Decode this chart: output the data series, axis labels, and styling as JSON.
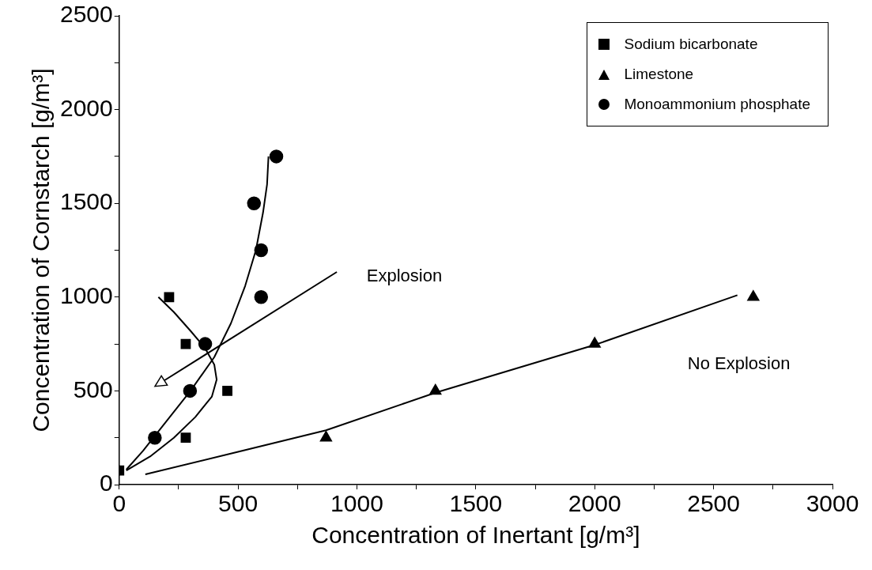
{
  "chart_data": {
    "type": "scatter",
    "xlabel": "Concentration of Inertant [g/m³]",
    "ylabel": "Concentration of Cornstarch [g/m³]",
    "xlim": [
      0,
      3000
    ],
    "ylim": [
      0,
      2500
    ],
    "xticks": [
      0,
      {
        "value": 250,
        "label": null
      },
      500,
      {
        "value": 750,
        "label": null
      },
      1000,
      {
        "value": 1250,
        "label": null
      },
      1500,
      {
        "value": 1750,
        "label": null
      },
      2000,
      {
        "value": 2250,
        "label": null
      },
      2500,
      {
        "value": 2750,
        "label": null
      },
      3000
    ],
    "yticks": [
      0,
      {
        "value": 250,
        "label": null
      },
      500,
      {
        "value": 750,
        "label": null
      },
      1000,
      {
        "value": 1250,
        "label": null
      },
      1500,
      {
        "value": 1750,
        "label": null
      },
      2000,
      {
        "value": 2250,
        "label": null
      },
      2500
    ],
    "grid": false,
    "legend": "top right",
    "series": [
      {
        "name": "Sodium bicarbonate",
        "type": "scatter",
        "marker": "square",
        "color": "#000000",
        "x": [
          0,
          210,
          280,
          455,
          280
        ],
        "values": [
          75,
          1000,
          750,
          500,
          250
        ]
      },
      {
        "name": "Limestone",
        "type": "scatter",
        "marker": "triangle",
        "color": "#000000",
        "x": [
          870,
          1330,
          2000,
          2667
        ],
        "values": [
          250,
          500,
          750,
          1000
        ]
      },
      {
        "name": "Monoammonium phosphate",
        "type": "scatter",
        "marker": "circle",
        "color": "#000000",
        "x": [
          150,
          298,
          362,
          597,
          597,
          567,
          661
        ],
        "values": [
          250,
          500,
          750,
          1000,
          1250,
          1500,
          1750
        ]
      },
      {
        "type": "line",
        "marker": "none",
        "color": "#000000",
        "x": [
          30,
          130,
          230,
          320,
          390,
          410,
          400,
          360,
          300,
          230,
          165
        ],
        "values": [
          75,
          150,
          250,
          360,
          470,
          560,
          640,
          730,
          820,
          920,
          1000
        ]
      },
      {
        "type": "line",
        "marker": "none",
        "color": "#000000",
        "x": [
          30,
          100,
          200,
          300,
          400,
          470,
          530,
          575,
          605,
          622,
          628
        ],
        "values": [
          80,
          180,
          340,
          500,
          680,
          860,
          1060,
          1250,
          1450,
          1600,
          1750
        ]
      },
      {
        "type": "line",
        "marker": "none",
        "color": "#000000",
        "x": [
          110,
          500,
          870,
          1330,
          2000,
          2600
        ],
        "values": [
          55,
          175,
          290,
          490,
          745,
          1010
        ]
      }
    ],
    "annotations": [
      "Explosion",
      "No Explosion"
    ]
  }
}
